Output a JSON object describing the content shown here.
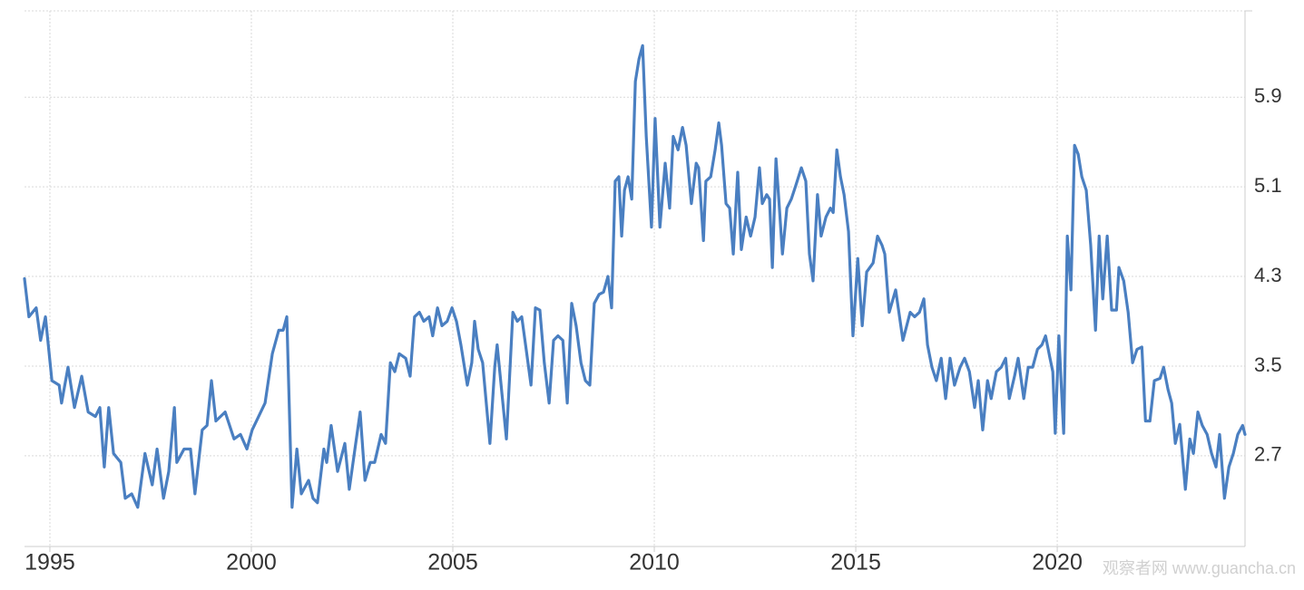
{
  "chart_data": {
    "type": "line",
    "watermark": "观察者网 www.guancha.cn",
    "color": "#4a7fc1",
    "grid": true,
    "xlim": [
      1994.37,
      2024.66
    ],
    "ylim": [
      1.89,
      6.67
    ],
    "xticks": [
      1995,
      2000,
      2005,
      2010,
      2015,
      2020
    ],
    "yticks": [
      2.7,
      3.5,
      4.3,
      5.1,
      5.9
    ],
    "x": [
      1994.37,
      1994.48,
      1994.66,
      1994.77,
      1994.89,
      1995.05,
      1995.23,
      1995.29,
      1995.45,
      1995.61,
      1995.79,
      1995.95,
      1996.13,
      1996.24,
      1996.35,
      1996.46,
      1996.58,
      1996.76,
      1996.87,
      1997.03,
      1997.18,
      1997.36,
      1997.54,
      1997.66,
      1997.82,
      1997.95,
      1998.09,
      1998.15,
      1998.33,
      1998.49,
      1998.6,
      1998.78,
      1998.9,
      1999.01,
      1999.12,
      1999.35,
      1999.57,
      1999.73,
      1999.89,
      2000.02,
      2000.18,
      2000.34,
      2000.52,
      2000.68,
      2000.79,
      2000.88,
      2001.01,
      2001.13,
      2001.24,
      2001.42,
      2001.53,
      2001.64,
      2001.8,
      2001.87,
      2001.98,
      2002.14,
      2002.32,
      2002.43,
      2002.59,
      2002.7,
      2002.82,
      2002.95,
      2003.06,
      2003.22,
      2003.33,
      2003.45,
      2003.56,
      2003.67,
      2003.83,
      2003.94,
      2004.05,
      2004.17,
      2004.28,
      2004.41,
      2004.5,
      2004.62,
      2004.73,
      2004.86,
      2004.98,
      2005.09,
      2005.2,
      2005.36,
      2005.47,
      2005.54,
      2005.63,
      2005.74,
      2005.92,
      2006.04,
      2006.1,
      2006.22,
      2006.33,
      2006.49,
      2006.6,
      2006.71,
      2006.82,
      2006.94,
      2007.05,
      2007.16,
      2007.27,
      2007.39,
      2007.5,
      2007.61,
      2007.73,
      2007.84,
      2007.95,
      2008.06,
      2008.18,
      2008.29,
      2008.4,
      2008.51,
      2008.63,
      2008.74,
      2008.85,
      2008.94,
      2009.03,
      2009.12,
      2009.19,
      2009.26,
      2009.35,
      2009.44,
      2009.53,
      2009.62,
      2009.71,
      2009.8,
      2009.93,
      2010.02,
      2010.14,
      2010.27,
      2010.38,
      2010.47,
      2010.59,
      2010.7,
      2010.79,
      2010.92,
      2011.04,
      2011.1,
      2011.22,
      2011.28,
      2011.4,
      2011.51,
      2011.6,
      2011.67,
      2011.78,
      2011.87,
      2011.96,
      2012.07,
      2012.16,
      2012.28,
      2012.39,
      2012.5,
      2012.61,
      2012.68,
      2012.79,
      2012.86,
      2012.93,
      2013.02,
      2013.09,
      2013.18,
      2013.29,
      2013.4,
      2013.51,
      2013.65,
      2013.76,
      2013.85,
      2013.94,
      2014.05,
      2014.14,
      2014.26,
      2014.37,
      2014.44,
      2014.53,
      2014.62,
      2014.71,
      2014.82,
      2014.93,
      2015.05,
      2015.16,
      2015.27,
      2015.43,
      2015.54,
      2015.65,
      2015.72,
      2015.83,
      2015.99,
      2016.17,
      2016.35,
      2016.46,
      2016.58,
      2016.69,
      2016.78,
      2016.89,
      2017.0,
      2017.12,
      2017.23,
      2017.34,
      2017.45,
      2017.59,
      2017.7,
      2017.82,
      2017.95,
      2018.04,
      2018.15,
      2018.27,
      2018.36,
      2018.49,
      2018.61,
      2018.72,
      2018.81,
      2018.94,
      2019.03,
      2019.17,
      2019.28,
      2019.39,
      2019.51,
      2019.62,
      2019.71,
      2019.82,
      2019.89,
      2019.95,
      2020.04,
      2020.16,
      2020.25,
      2020.34,
      2020.43,
      2020.52,
      2020.61,
      2020.72,
      2020.83,
      2020.95,
      2021.04,
      2021.13,
      2021.24,
      2021.35,
      2021.47,
      2021.53,
      2021.65,
      2021.76,
      2021.87,
      2021.98,
      2022.1,
      2022.19,
      2022.3,
      2022.41,
      2022.55,
      2022.64,
      2022.75,
      2022.84,
      2022.93,
      2023.04,
      2023.18,
      2023.29,
      2023.38,
      2023.49,
      2023.6,
      2023.72,
      2023.83,
      2023.94,
      2024.03,
      2024.15,
      2024.26,
      2024.37,
      2024.48,
      2024.6,
      2024.66
    ],
    "values": [
      4.28,
      3.94,
      4.02,
      3.73,
      3.94,
      3.37,
      3.33,
      3.17,
      3.49,
      3.13,
      3.41,
      3.09,
      3.05,
      3.13,
      2.6,
      3.13,
      2.72,
      2.64,
      2.32,
      2.36,
      2.24,
      2.72,
      2.44,
      2.76,
      2.32,
      2.56,
      3.13,
      2.64,
      2.76,
      2.76,
      2.36,
      2.93,
      2.97,
      3.37,
      3.01,
      3.09,
      2.85,
      2.89,
      2.76,
      2.93,
      3.05,
      3.17,
      3.61,
      3.82,
      3.82,
      3.94,
      2.24,
      2.76,
      2.36,
      2.48,
      2.32,
      2.28,
      2.76,
      2.64,
      2.97,
      2.56,
      2.81,
      2.4,
      2.81,
      3.09,
      2.48,
      2.64,
      2.64,
      2.89,
      2.81,
      3.53,
      3.45,
      3.61,
      3.57,
      3.41,
      3.94,
      3.98,
      3.9,
      3.94,
      3.77,
      4.02,
      3.86,
      3.9,
      4.02,
      3.9,
      3.69,
      3.33,
      3.53,
      3.9,
      3.65,
      3.53,
      2.81,
      3.49,
      3.69,
      3.25,
      2.85,
      3.98,
      3.9,
      3.94,
      3.65,
      3.33,
      4.02,
      4.0,
      3.53,
      3.17,
      3.73,
      3.77,
      3.73,
      3.17,
      4.06,
      3.86,
      3.53,
      3.37,
      3.33,
      4.06,
      4.14,
      4.16,
      4.3,
      4.02,
      5.15,
      5.19,
      4.66,
      5.07,
      5.19,
      4.99,
      6.04,
      6.24,
      6.36,
      5.55,
      4.74,
      5.71,
      4.74,
      5.31,
      4.91,
      5.55,
      5.43,
      5.63,
      5.47,
      4.95,
      5.31,
      5.27,
      4.62,
      5.15,
      5.19,
      5.43,
      5.67,
      5.47,
      4.95,
      4.91,
      4.5,
      5.23,
      4.54,
      4.83,
      4.66,
      4.83,
      5.27,
      4.95,
      5.03,
      4.99,
      4.38,
      5.35,
      4.99,
      4.5,
      4.91,
      4.99,
      5.11,
      5.27,
      5.15,
      4.5,
      4.26,
      5.03,
      4.66,
      4.83,
      4.91,
      4.87,
      5.43,
      5.19,
      5.03,
      4.7,
      3.77,
      4.46,
      3.86,
      4.34,
      4.42,
      4.66,
      4.58,
      4.5,
      3.98,
      4.18,
      3.73,
      3.98,
      3.94,
      3.98,
      4.1,
      3.69,
      3.49,
      3.37,
      3.57,
      3.21,
      3.57,
      3.33,
      3.49,
      3.57,
      3.45,
      3.13,
      3.37,
      2.93,
      3.37,
      3.21,
      3.45,
      3.49,
      3.57,
      3.21,
      3.41,
      3.57,
      3.21,
      3.49,
      3.49,
      3.65,
      3.69,
      3.77,
      3.57,
      3.45,
      2.9,
      3.77,
      2.9,
      4.66,
      4.18,
      5.47,
      5.39,
      5.19,
      5.07,
      4.58,
      3.82,
      4.66,
      4.1,
      4.66,
      4.0,
      4.0,
      4.38,
      4.26,
      3.98,
      3.53,
      3.65,
      3.67,
      3.01,
      3.01,
      3.37,
      3.39,
      3.49,
      3.29,
      3.17,
      2.81,
      2.98,
      2.4,
      2.85,
      2.72,
      3.09,
      2.97,
      2.89,
      2.72,
      2.6,
      2.89,
      2.32,
      2.6,
      2.72,
      2.89,
      2.97,
      2.89
    ]
  }
}
